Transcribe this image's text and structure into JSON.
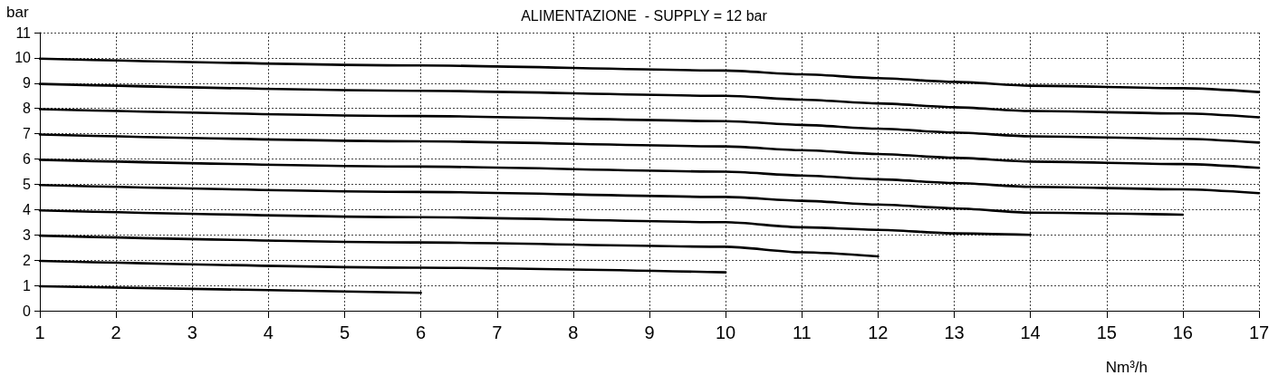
{
  "chart_data": {
    "type": "line",
    "title": "ALIMENTAZIONE  - SUPPLY = 12 bar",
    "xlabel": "Nm³/h",
    "ylabel": "bar",
    "xlim": [
      1,
      17
    ],
    "xticks": [
      1,
      2,
      3,
      4,
      5,
      6,
      7,
      8,
      9,
      10,
      11,
      12,
      13,
      14,
      15,
      16,
      17
    ],
    "ylim": [
      0,
      11
    ],
    "yticks": [
      0,
      1,
      2,
      3,
      4,
      5,
      6,
      7,
      8,
      9,
      10,
      11
    ],
    "grid": true,
    "marker": "none",
    "line_style": "solid",
    "series": [
      {
        "color": "#000000",
        "x": [
          1,
          6,
          10,
          11,
          12,
          13,
          14,
          16,
          17
        ],
        "values": [
          9.97,
          9.7,
          9.5,
          9.35,
          9.2,
          9.05,
          8.9,
          8.8,
          8.65
        ]
      },
      {
        "color": "#000000",
        "x": [
          1,
          6,
          10,
          11,
          12,
          13,
          14,
          16,
          17
        ],
        "values": [
          8.97,
          8.7,
          8.5,
          8.35,
          8.2,
          8.05,
          7.9,
          7.8,
          7.65
        ]
      },
      {
        "color": "#000000",
        "x": [
          1,
          6,
          10,
          11,
          12,
          13,
          14,
          16,
          17
        ],
        "values": [
          7.97,
          7.7,
          7.5,
          7.35,
          7.2,
          7.05,
          6.9,
          6.8,
          6.65
        ]
      },
      {
        "color": "#000000",
        "x": [
          1,
          6,
          10,
          11,
          12,
          13,
          14,
          16,
          17
        ],
        "values": [
          6.97,
          6.7,
          6.5,
          6.35,
          6.2,
          6.05,
          5.9,
          5.8,
          5.65
        ]
      },
      {
        "color": "#000000",
        "x": [
          1,
          6,
          10,
          11,
          12,
          13,
          14,
          16,
          17
        ],
        "values": [
          5.97,
          5.7,
          5.5,
          5.35,
          5.2,
          5.05,
          4.9,
          4.8,
          4.65
        ]
      },
      {
        "color": "#000000",
        "x": [
          1,
          6,
          10,
          11,
          12,
          13,
          14,
          16
        ],
        "values": [
          4.97,
          4.7,
          4.5,
          4.35,
          4.2,
          4.05,
          3.88,
          3.8
        ]
      },
      {
        "color": "#000000",
        "x": [
          1,
          6,
          10,
          11,
          12,
          13,
          14
        ],
        "values": [
          3.97,
          3.7,
          3.5,
          3.3,
          3.2,
          3.06,
          3.0
        ]
      },
      {
        "color": "#000000",
        "x": [
          1,
          6,
          10,
          11,
          12
        ],
        "values": [
          2.97,
          2.7,
          2.53,
          2.31,
          2.15
        ]
      },
      {
        "color": "#000000",
        "x": [
          1,
          6,
          10
        ],
        "values": [
          1.97,
          1.7,
          1.52
        ]
      },
      {
        "color": "#000000",
        "x": [
          1,
          6
        ],
        "values": [
          0.97,
          0.71
        ]
      }
    ]
  }
}
